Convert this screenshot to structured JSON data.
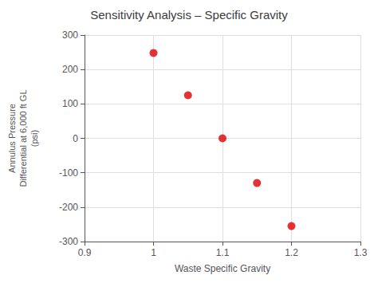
{
  "chart_data": {
    "type": "scatter",
    "title": "Sensitivity Analysis – Specific Gravity",
    "xlabel": "Waste Specific Gravity",
    "ylabel": "Annulus Pressure\nDifferential at 6,000 ft GL\n(psi)",
    "x": [
      1.0,
      1.05,
      1.1,
      1.15,
      1.2
    ],
    "values": [
      248,
      125,
      0,
      -130,
      -255
    ],
    "color": "#dd0000",
    "xlim": [
      0.9,
      1.3
    ],
    "ylim": [
      -300,
      300
    ],
    "xticks": [
      0.9,
      1,
      1.1,
      1.2,
      1.3
    ],
    "yticks": [
      -300,
      -200,
      -100,
      0,
      100,
      200,
      300
    ],
    "grid": true
  }
}
